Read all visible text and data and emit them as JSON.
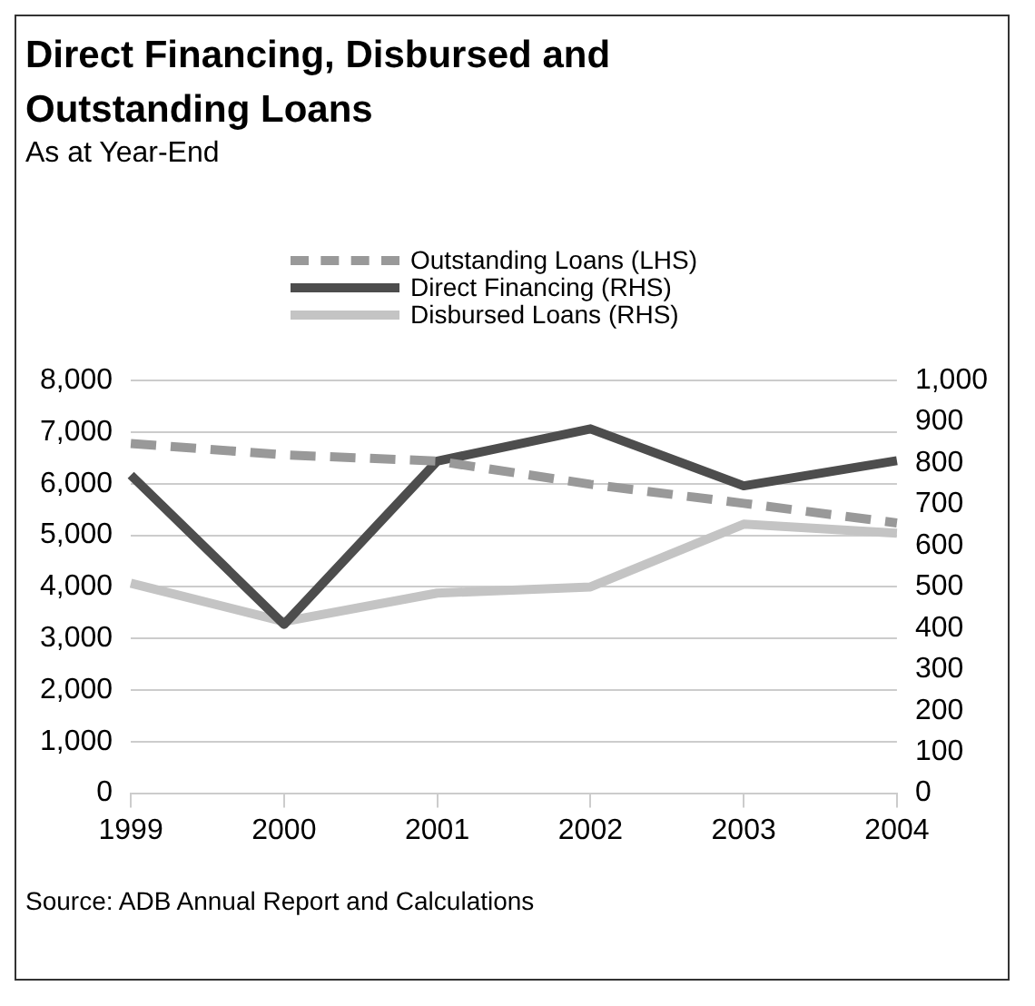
{
  "chart_data": {
    "type": "line",
    "title": "Direct Financing, Disbursed and Outstanding Loans",
    "subtitle": "As at Year-End",
    "categories": [
      "1999",
      "2000",
      "2001",
      "2002",
      "2003",
      "2004"
    ],
    "series": [
      {
        "name": "Outstanding Loans (LHS)",
        "color": "#999999",
        "line_style": "dashed",
        "values": [
          6780,
          6560,
          6440,
          5990,
          5620,
          5240
        ]
      },
      {
        "name": "Direct Financing (RHS)",
        "color": "#4d4d4d",
        "axis": "y2",
        "values": [
          771,
          409,
          805,
          883,
          745,
          806
        ]
      },
      {
        "name": "Disbursed Loans (RHS)",
        "color": "#c4c4c4",
        "axis": "y2",
        "values": [
          509,
          416,
          485,
          500,
          652,
          630
        ]
      }
    ],
    "ylim": [
      0,
      8000
    ],
    "yticks": [
      0,
      {
        "value": 1000,
        "label": "1,000"
      },
      {
        "value": 2000,
        "label": "2,000"
      },
      {
        "value": 3000,
        "label": "3,000"
      },
      {
        "value": 4000,
        "label": "4,000"
      },
      {
        "value": 5000,
        "label": "5,000"
      },
      {
        "value": 6000,
        "label": "6,000"
      },
      {
        "value": 7000,
        "label": "7,000"
      },
      {
        "value": 8000,
        "label": "8,000"
      }
    ],
    "y2lim": [
      0,
      1000
    ],
    "y2ticks": [
      0,
      100,
      200,
      300,
      400,
      500,
      600,
      700,
      800,
      900,
      {
        "value": 1000,
        "label": "1,000"
      }
    ],
    "grid": "y",
    "legend": "top",
    "marker": "none",
    "annotations": [
      "Source: ADB Annual Report and Calculations"
    ]
  }
}
